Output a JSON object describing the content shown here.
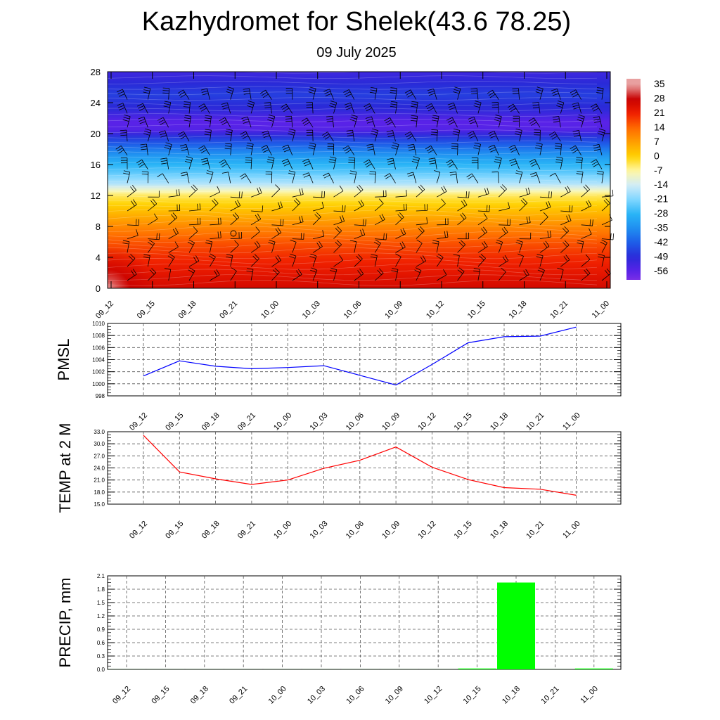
{
  "title": "Kazhydromet for Shelek(43.6 78.25)",
  "subtitle": "09 July 2025",
  "chart_data": [
    {
      "type": "heatmap",
      "name": "temperature-wind-cross-section",
      "x_tick_labels": [
        "09_12",
        "09_15",
        "09_18",
        "09_21",
        "10_00",
        "10_03",
        "10_06",
        "10_09",
        "10_12",
        "10_15",
        "10_18",
        "10_21",
        "11_00"
      ],
      "y_ticks": [
        0,
        4,
        8,
        12,
        16,
        20,
        24,
        28
      ],
      "ylim": [
        0,
        28
      ],
      "colorbar_labels": [
        35,
        28,
        21,
        14,
        7,
        0,
        -7,
        -14,
        -21,
        -28,
        -35,
        -42,
        -49,
        -56
      ],
      "colorbar_range": [
        -60,
        38
      ],
      "colors": {
        "-60": "#7a2fe6",
        "-56": "#5a22e8",
        "-49": "#2a2ad8",
        "-42": "#1e5ce8",
        "-35": "#1f8ef0",
        "-28": "#29b4f6",
        "-21": "#7fd6ff",
        "-14": "#d0ecf8",
        "-7": "#fff8a8",
        "0": "#ffd200",
        "7": "#ffa000",
        "14": "#ff6a00",
        "21": "#f02000",
        "28": "#c80000",
        "35": "#e8a0a0"
      },
      "temperature_profile": [
        [
          0,
          26
        ],
        [
          2,
          23
        ],
        [
          4,
          20
        ],
        [
          6,
          16
        ],
        [
          8,
          10
        ],
        [
          10,
          3
        ],
        [
          12,
          -4
        ],
        [
          12.8,
          -10
        ],
        [
          13.4,
          -16
        ],
        [
          15,
          -24
        ],
        [
          16.5,
          -30
        ],
        [
          18,
          -38
        ],
        [
          19.5,
          -47
        ],
        [
          20.5,
          -55
        ],
        [
          21.5,
          -56
        ],
        [
          23,
          -50
        ],
        [
          25,
          -46
        ],
        [
          28,
          -52
        ]
      ],
      "wind_barbs": true
    },
    {
      "type": "line",
      "name": "pmsl",
      "ylabel": "PMSL",
      "x_tick_labels": [
        "09_12",
        "09_15",
        "09_18",
        "09_21",
        "10_00",
        "10_03",
        "10_06",
        "10_09",
        "10_12",
        "10_15",
        "10_18",
        "10_21",
        "11_00"
      ],
      "ylim": [
        998,
        1010
      ],
      "y_ticks": [
        998,
        1000,
        1002,
        1004,
        1006,
        1008,
        1010
      ],
      "values": [
        1001.3,
        1003.8,
        1002.9,
        1002.5,
        1002.7,
        1003.0,
        1001.4,
        999.8,
        1003.2,
        1006.8,
        1007.8,
        1007.9,
        1009.4
      ],
      "color": "#0000ff"
    },
    {
      "type": "line",
      "name": "temp-2m",
      "ylabel": "TEMP at 2 M",
      "x_tick_labels": [
        "09_12",
        "09_15",
        "09_18",
        "09_21",
        "10_00",
        "10_03",
        "10_06",
        "10_09",
        "10_12",
        "10_15",
        "10_18",
        "10_21",
        "11_00"
      ],
      "ylim": [
        15.0,
        33.0
      ],
      "y_ticks": [
        "15.0",
        "18.0",
        "21.0",
        "24.0",
        "27.0",
        "30.0",
        "33.0"
      ],
      "values": [
        32.1,
        23.0,
        21.3,
        19.9,
        21.0,
        23.9,
        25.9,
        29.2,
        24.2,
        21.1,
        19.1,
        18.7,
        17.2
      ],
      "color": "#ff0000"
    },
    {
      "type": "bar",
      "name": "precip",
      "ylabel": "PRECIP, mm",
      "x_tick_labels": [
        "09_12",
        "09_15",
        "09_18",
        "09_21",
        "10_00",
        "10_03",
        "10_06",
        "10_09",
        "10_12",
        "10_15",
        "10_18",
        "10_21",
        "11_00"
      ],
      "ylim": [
        0.0,
        2.1
      ],
      "y_ticks": [
        "0.0",
        "0.3",
        "0.6",
        "0.9",
        "1.2",
        "1.5",
        "1.8",
        "2.1"
      ],
      "values": [
        0,
        0,
        0,
        0,
        0,
        0,
        0,
        0,
        0,
        0.02,
        1.95,
        0,
        0.02
      ],
      "color": "#00ff00"
    }
  ]
}
